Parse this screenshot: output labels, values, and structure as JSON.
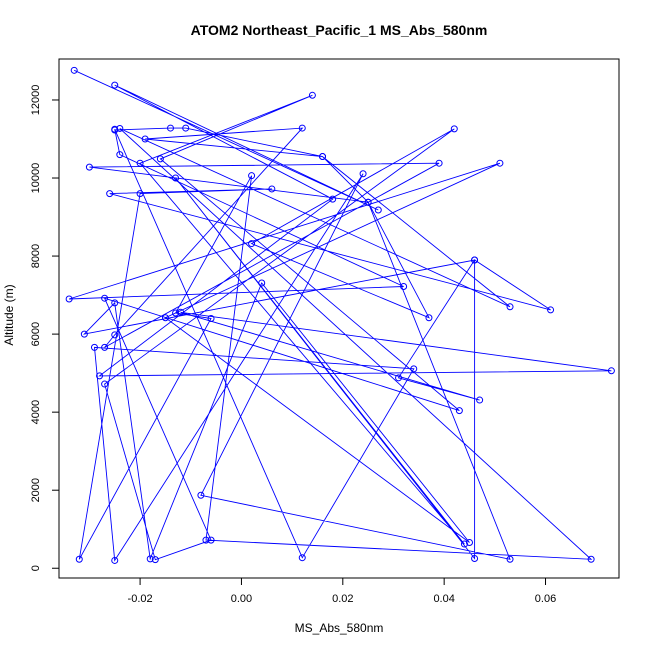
{
  "chart_data": {
    "type": "line",
    "title": "ATOM2 Northeast_Pacific_1 MS_Abs_580nm",
    "xlabel": "MS_Abs_580nm",
    "ylabel": "Altitude (m)",
    "xlim": [
      -0.036,
      0.0745
    ],
    "ylim": [
      -250,
      13050
    ],
    "x_ticks": [
      -0.02,
      0.0,
      0.02,
      0.04,
      0.06
    ],
    "x_tick_labels": [
      "-0.02",
      "0.00",
      "0.02",
      "0.04",
      "0.06"
    ],
    "y_ticks": [
      0,
      2000,
      4000,
      6000,
      8000,
      10000,
      12000
    ],
    "y_tick_labels": [
      "0",
      "2000",
      "4000",
      "6000",
      "8000",
      "10000",
      "12000"
    ],
    "grid": false,
    "colors": {
      "series": "#0000ff",
      "axis": "#000000"
    },
    "series": [
      {
        "x": [
          -0.033,
          0.027,
          -0.025,
          0.018,
          -0.028,
          0.073,
          -0.012,
          0.047,
          0.031,
          0.046,
          -0.031,
          -0.025,
          -0.018,
          0.004,
          0.045,
          -0.015,
          0.051,
          -0.034,
          0.032,
          -0.024,
          -0.025,
          0.012,
          0.034,
          -0.029,
          -0.025,
          0.024,
          -0.008,
          0.053,
          0.025,
          0.037,
          0.002,
          0.042,
          -0.027,
          -0.017,
          -0.006,
          -0.027,
          0.043,
          -0.016,
          0.014,
          -0.02,
          0.044,
          -0.013,
          0.046,
          0.046,
          0.061,
          -0.026,
          0.006,
          -0.02,
          -0.032,
          -0.006,
          -0.013,
          0.002,
          -0.007,
          0.069,
          -0.024,
          0.053,
          0.016,
          -0.019,
          0.012,
          -0.025,
          -0.027,
          0.039,
          -0.03,
          0.025,
          0.016,
          -0.011,
          -0.014,
          -0.025
        ],
        "y": [
          12760,
          9180,
          12380,
          9460,
          4930,
          5060,
          6560,
          4310,
          4880,
          7900,
          6000,
          6800,
          240,
          7310,
          660,
          6420,
          10380,
          6900,
          7220,
          10600,
          11250,
          270,
          5110,
          5660,
          200,
          10110,
          1870,
          230,
          9380,
          6420,
          8320,
          11260,
          4720,
          220,
          720,
          6920,
          4040,
          10490,
          12120,
          10380,
          620,
          10000,
          250,
          7900,
          6620,
          9600,
          9720,
          9600,
          230,
          6400,
          6540,
          10060,
          720,
          230,
          11270,
          6700,
          10550,
          11000,
          11280,
          5980,
          5660,
          10380,
          10280,
          9380,
          10550,
          11280,
          11280,
          11230
        ]
      }
    ]
  }
}
